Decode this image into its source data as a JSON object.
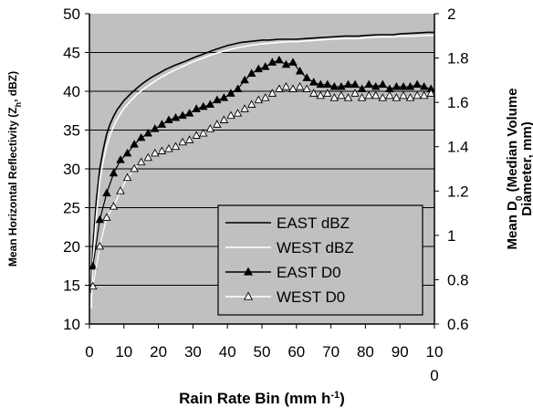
{
  "chart_data": {
    "type": "line",
    "xlabel": "Rain Rate Bin (mm h",
    "xlabel_sup": "-1",
    "xlabel_close": ")",
    "ylabel": "Mean Horizontal Reflectivity (Z",
    "ylabel_sub": "h",
    "ylabel_close": ", dBZ)",
    "y2label_line1": "Mean D",
    "y2label_sub": "0",
    "y2label_line1_rest": " (Median Volume",
    "y2label_line2": "Diameter, mm)",
    "xlim": [
      0,
      100
    ],
    "ylim": [
      10,
      50
    ],
    "y2lim": [
      0.6,
      2.0
    ],
    "x_ticks": [
      "0",
      "10",
      "20",
      "30",
      "40",
      "50",
      "60",
      "70",
      "80",
      "90",
      "10\n0"
    ],
    "y_ticks": [
      "10",
      "15",
      "20",
      "25",
      "30",
      "35",
      "40",
      "45",
      "50"
    ],
    "y2_ticks": [
      "0.6",
      "0.8",
      "1",
      "1.2",
      "1.4",
      "1.6",
      "1.8",
      "2"
    ],
    "plot_background": "#c0c0c0",
    "grid": "horizontal",
    "legend_position": "lower-right",
    "series": [
      {
        "name": "EAST dBZ",
        "axis": "left",
        "style": "line",
        "color": "#000000",
        "x": [
          0.5,
          1,
          2,
          3,
          4,
          5,
          6,
          7,
          8,
          10,
          12,
          14,
          16,
          18,
          20,
          22,
          25,
          28,
          30,
          33,
          36,
          40,
          44,
          48,
          50,
          52,
          55,
          58,
          60,
          63,
          66,
          70,
          74,
          78,
          80,
          84,
          88,
          90,
          94,
          98,
          100
        ],
        "y": [
          14,
          20,
          26,
          30,
          32.5,
          34.5,
          35.8,
          36.8,
          37.6,
          38.8,
          39.7,
          40.5,
          41.2,
          41.8,
          42.3,
          42.8,
          43.4,
          43.9,
          44.3,
          44.8,
          45.3,
          45.9,
          46.3,
          46.5,
          46.6,
          46.6,
          46.7,
          46.7,
          46.7,
          46.8,
          46.9,
          47,
          47.1,
          47.1,
          47.2,
          47.3,
          47.3,
          47.4,
          47.5,
          47.6,
          47.6
        ]
      },
      {
        "name": "WEST dBZ",
        "axis": "left",
        "style": "line",
        "color": "#ffffff",
        "x": [
          0.5,
          1,
          2,
          3,
          4,
          5,
          6,
          7,
          8,
          10,
          12,
          14,
          16,
          18,
          20,
          22,
          25,
          28,
          30,
          33,
          36,
          40,
          44,
          48,
          50,
          52,
          55,
          58,
          60,
          63,
          66,
          70,
          74,
          78,
          80,
          84,
          88,
          90,
          94,
          98,
          100
        ],
        "y": [
          12,
          18,
          24,
          28.5,
          31,
          33,
          34.4,
          35.5,
          36.4,
          37.8,
          38.8,
          39.7,
          40.4,
          41,
          41.6,
          42.1,
          42.8,
          43.4,
          43.8,
          44.3,
          44.8,
          45.3,
          45.7,
          46,
          46.1,
          46.2,
          46.3,
          46.4,
          46.4,
          46.5,
          46.6,
          46.7,
          46.8,
          46.8,
          46.9,
          47,
          47,
          47.1,
          47.1,
          47.2,
          47.2
        ]
      },
      {
        "name": "EAST D0",
        "axis": "right",
        "style": "line-marker",
        "marker": "filled-triangle",
        "color": "#000000",
        "x": [
          1,
          3,
          5,
          7,
          9,
          11,
          13,
          15,
          17,
          19,
          21,
          23,
          25,
          27,
          29,
          31,
          33,
          35,
          37,
          39,
          41,
          43,
          45,
          47,
          49,
          51,
          53,
          55,
          57,
          59,
          61,
          63,
          65,
          67,
          69,
          71,
          73,
          75,
          77,
          79,
          81,
          83,
          85,
          87,
          89,
          91,
          93,
          95,
          97,
          99
        ],
        "y": [
          0.86,
          1.07,
          1.19,
          1.28,
          1.34,
          1.37,
          1.41,
          1.44,
          1.46,
          1.48,
          1.5,
          1.52,
          1.53,
          1.54,
          1.55,
          1.57,
          1.58,
          1.59,
          1.61,
          1.62,
          1.64,
          1.66,
          1.7,
          1.73,
          1.75,
          1.76,
          1.78,
          1.79,
          1.77,
          1.78,
          1.74,
          1.71,
          1.69,
          1.68,
          1.68,
          1.67,
          1.67,
          1.68,
          1.68,
          1.66,
          1.68,
          1.67,
          1.68,
          1.66,
          1.67,
          1.67,
          1.67,
          1.68,
          1.67,
          1.66
        ]
      },
      {
        "name": "WEST D0",
        "axis": "right",
        "style": "line-marker",
        "marker": "open-triangle",
        "color": "#ffffff",
        "marker_stroke": "#000000",
        "x": [
          1,
          3,
          5,
          7,
          9,
          11,
          13,
          15,
          17,
          19,
          21,
          23,
          25,
          27,
          29,
          31,
          33,
          35,
          37,
          39,
          41,
          43,
          45,
          47,
          49,
          51,
          53,
          55,
          57,
          59,
          61,
          63,
          65,
          67,
          69,
          71,
          73,
          75,
          77,
          79,
          81,
          83,
          85,
          87,
          89,
          91,
          93,
          95,
          97,
          99
        ],
        "y": [
          0.77,
          0.95,
          1.08,
          1.13,
          1.2,
          1.26,
          1.3,
          1.33,
          1.35,
          1.37,
          1.38,
          1.39,
          1.4,
          1.42,
          1.43,
          1.45,
          1.46,
          1.48,
          1.5,
          1.52,
          1.54,
          1.55,
          1.57,
          1.59,
          1.61,
          1.62,
          1.64,
          1.66,
          1.67,
          1.66,
          1.67,
          1.66,
          1.64,
          1.63,
          1.64,
          1.62,
          1.63,
          1.62,
          1.64,
          1.62,
          1.63,
          1.63,
          1.62,
          1.63,
          1.62,
          1.63,
          1.62,
          1.63,
          1.63,
          1.64
        ]
      }
    ]
  }
}
